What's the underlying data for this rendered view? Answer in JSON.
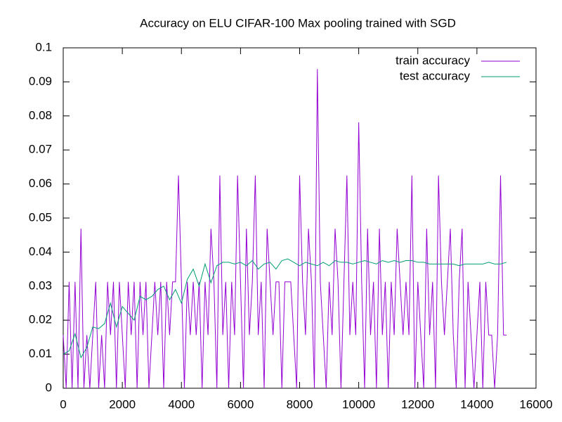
{
  "chart_data": {
    "type": "line",
    "title": "Accuracy on ELU CIFAR-100 Max pooling trained with SGD",
    "xlim": [
      0,
      16000
    ],
    "xticks": [
      0,
      2000,
      4000,
      6000,
      8000,
      10000,
      12000,
      14000,
      16000
    ],
    "ylim": [
      0,
      0.1
    ],
    "yticks": [
      0,
      0.01,
      0.02,
      0.03,
      0.04,
      0.05,
      0.06,
      0.07,
      0.08,
      0.09,
      0.1
    ],
    "legend": "top-right",
    "series": [
      {
        "name": "train accuracy",
        "color": "#9400d3",
        "x": [
          0,
          100,
          200,
          300,
          400,
          500,
          600,
          700,
          800,
          900,
          1000,
          1100,
          1200,
          1300,
          1400,
          1500,
          1600,
          1700,
          1800,
          1900,
          2000,
          2100,
          2200,
          2300,
          2400,
          2500,
          2600,
          2700,
          2800,
          2900,
          3000,
          3100,
          3200,
          3300,
          3400,
          3500,
          3600,
          3700,
          3800,
          3900,
          4000,
          4100,
          4200,
          4300,
          4400,
          4500,
          4600,
          4700,
          4800,
          4900,
          5000,
          5100,
          5200,
          5300,
          5400,
          5500,
          5600,
          5700,
          5800,
          5900,
          6000,
          6100,
          6200,
          6300,
          6400,
          6500,
          6600,
          6700,
          6800,
          6900,
          7000,
          7100,
          7200,
          7300,
          7400,
          7500,
          7600,
          7700,
          7800,
          7900,
          8000,
          8100,
          8200,
          8300,
          8400,
          8500,
          8600,
          8700,
          8800,
          8900,
          9000,
          9100,
          9200,
          9300,
          9400,
          9500,
          9600,
          9700,
          9800,
          9900,
          10000,
          10100,
          10200,
          10300,
          10400,
          10500,
          10600,
          10700,
          10800,
          10900,
          11000,
          11100,
          11200,
          11300,
          11400,
          11500,
          11600,
          11700,
          11800,
          11900,
          12000,
          12100,
          12200,
          12300,
          12400,
          12500,
          12600,
          12700,
          12800,
          12900,
          13000,
          13100,
          13200,
          13300,
          13400,
          13500,
          13600,
          13700,
          13800,
          13900,
          14000,
          14100,
          14200,
          14300,
          14400,
          14500,
          14600,
          14700,
          14800,
          14900,
          15000
        ],
        "values": [
          0.015625,
          0,
          0.03125,
          0,
          0.03125,
          0,
          0.046875,
          0,
          0.015625,
          0,
          0.015625,
          0.03125,
          0,
          0.015625,
          0,
          0.03125,
          0.015625,
          0.03125,
          0,
          0.03125,
          0.015625,
          0,
          0.03125,
          0.015625,
          0.03125,
          0,
          0.03125,
          0.015625,
          0.03125,
          0,
          0.015625,
          0.03125,
          0.015625,
          0.03125,
          0,
          0.03125,
          0.015625,
          0.03125,
          0.03125,
          0.0625,
          0.03125,
          0,
          0.03125,
          0.015625,
          0.03125,
          0.015625,
          0.03125,
          0,
          0.03125,
          0.015625,
          0.046875,
          0.03125,
          0,
          0.0625,
          0.015625,
          0.03125,
          0,
          0.03125,
          0.015625,
          0.0625,
          0.03125,
          0,
          0.046875,
          0.015625,
          0.03125,
          0.0625,
          0.015625,
          0.03125,
          0,
          0.046875,
          0.03125,
          0.015625,
          0.03125,
          0.03125,
          0,
          0.03125,
          0.03125,
          0.03125,
          0.015625,
          0,
          0.0625,
          0.03125,
          0.015625,
          0.046875,
          0.03125,
          0,
          0.09375,
          0.03125,
          0.015625,
          0,
          0.03125,
          0.015625,
          0.046875,
          0.03125,
          0,
          0.03125,
          0.0625,
          0.015625,
          0.03125,
          0.015625,
          0.078125,
          0.03125,
          0,
          0.046875,
          0.015625,
          0.03125,
          0,
          0.046875,
          0.015625,
          0.03125,
          0,
          0.03125,
          0.015625,
          0.046875,
          0.03125,
          0.015625,
          0.03125,
          0.015625,
          0.0625,
          0,
          0.03125,
          0.015625,
          0,
          0.046875,
          0.015625,
          0.03125,
          0,
          0.0625,
          0.03125,
          0.015625,
          0.03125,
          0.046875,
          0.015625,
          0,
          0.03125,
          0.046875,
          0,
          0.03125,
          0.015625,
          0,
          0.015625,
          0.03125,
          0,
          0.03125,
          0.015625,
          0.015625,
          0,
          0.015625,
          0.0625,
          0.015625,
          0.015625
        ]
      },
      {
        "name": "test accuracy",
        "color": "#009e73",
        "x": [
          0,
          200,
          400,
          600,
          800,
          1000,
          1200,
          1400,
          1600,
          1800,
          2000,
          2200,
          2400,
          2600,
          2800,
          3000,
          3200,
          3400,
          3600,
          3800,
          4000,
          4200,
          4400,
          4600,
          4800,
          5000,
          5200,
          5400,
          5600,
          5800,
          6000,
          6200,
          6400,
          6600,
          6800,
          7000,
          7200,
          7400,
          7600,
          7800,
          8000,
          8200,
          8400,
          8600,
          8800,
          9000,
          9200,
          9400,
          9600,
          9800,
          10000,
          10200,
          10400,
          10600,
          10800,
          11000,
          11200,
          11400,
          11600,
          11800,
          12000,
          12200,
          12400,
          12600,
          12800,
          13000,
          13200,
          13400,
          13600,
          13800,
          14000,
          14200,
          14400,
          14600,
          14800,
          15000
        ],
        "values": [
          0.01,
          0.011,
          0.016,
          0.009,
          0.012,
          0.018,
          0.0175,
          0.019,
          0.025,
          0.018,
          0.024,
          0.022,
          0.02,
          0.027,
          0.026,
          0.027,
          0.029,
          0.03,
          0.026,
          0.029,
          0.025,
          0.032,
          0.035,
          0.03,
          0.0365,
          0.031,
          0.036,
          0.037,
          0.037,
          0.0365,
          0.037,
          0.036,
          0.0375,
          0.035,
          0.0365,
          0.037,
          0.035,
          0.0375,
          0.038,
          0.037,
          0.036,
          0.037,
          0.0365,
          0.036,
          0.037,
          0.036,
          0.0375,
          0.037,
          0.037,
          0.0365,
          0.037,
          0.0375,
          0.037,
          0.0365,
          0.0375,
          0.037,
          0.0375,
          0.037,
          0.0375,
          0.0375,
          0.037,
          0.037,
          0.0365,
          0.0365,
          0.0365,
          0.0365,
          0.0365,
          0.036,
          0.0365,
          0.0365,
          0.0365,
          0.0365,
          0.037,
          0.0365,
          0.0365,
          0.037
        ]
      }
    ]
  }
}
